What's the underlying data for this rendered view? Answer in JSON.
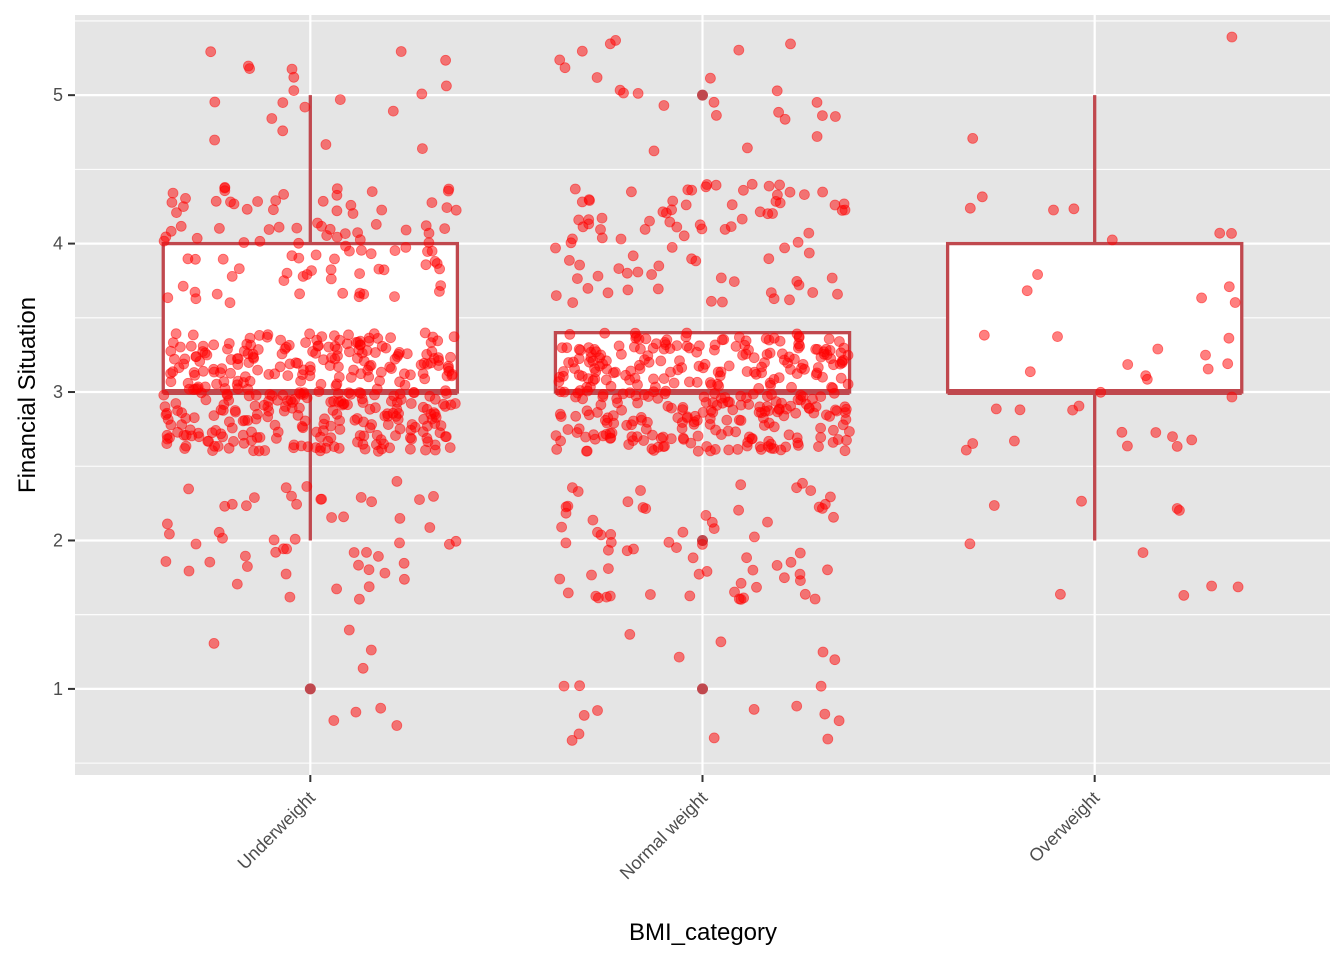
{
  "chart_data": {
    "type": "boxplot",
    "xlabel": "BMI_category",
    "ylabel": "Financial Situation",
    "categories": [
      "Underweight",
      "Normal weight",
      "Overweight"
    ],
    "ylim": [
      0.42,
      5.54
    ],
    "yticks": [
      1,
      2,
      3,
      4,
      5
    ],
    "grid": true,
    "boxes": [
      {
        "category": "Underweight",
        "whisker_low": 2,
        "q1": 3,
        "median": 3,
        "q3": 4,
        "whisker_high": 5,
        "outliers": [
          1
        ]
      },
      {
        "category": "Normal weight",
        "whisker_low": 3,
        "q1": 3,
        "median": 3,
        "q3": 3.4,
        "whisker_high": 3.4,
        "outliers": [
          1,
          2,
          5
        ]
      },
      {
        "category": "Overweight",
        "whisker_low": 2,
        "q1": 3,
        "median": 3,
        "q3": 4,
        "whisker_high": 5,
        "outliers": []
      }
    ],
    "jitter_points": {
      "note": "raw observations jittered horizontally and vertically around integer values",
      "counts": {
        "Underweight": 560,
        "Normal weight": 560,
        "Overweight": 50
      },
      "level_distribution": {
        "Underweight": {
          "1": 8,
          "2": 52,
          "3": 380,
          "4": 100,
          "5": 20
        },
        "Normal weight": {
          "1": 18,
          "2": 68,
          "3": 360,
          "4": 90,
          "5": 24
        },
        "Overweight": {
          "1": 0,
          "2": 10,
          "3": 26,
          "4": 12,
          "5": 2
        }
      }
    },
    "colors": {
      "panel_background": "#e5e5e5",
      "grid": "#ffffff",
      "box_stroke": "#c0484e",
      "box_fill": "#ffffff",
      "points": "#ff0000"
    }
  }
}
